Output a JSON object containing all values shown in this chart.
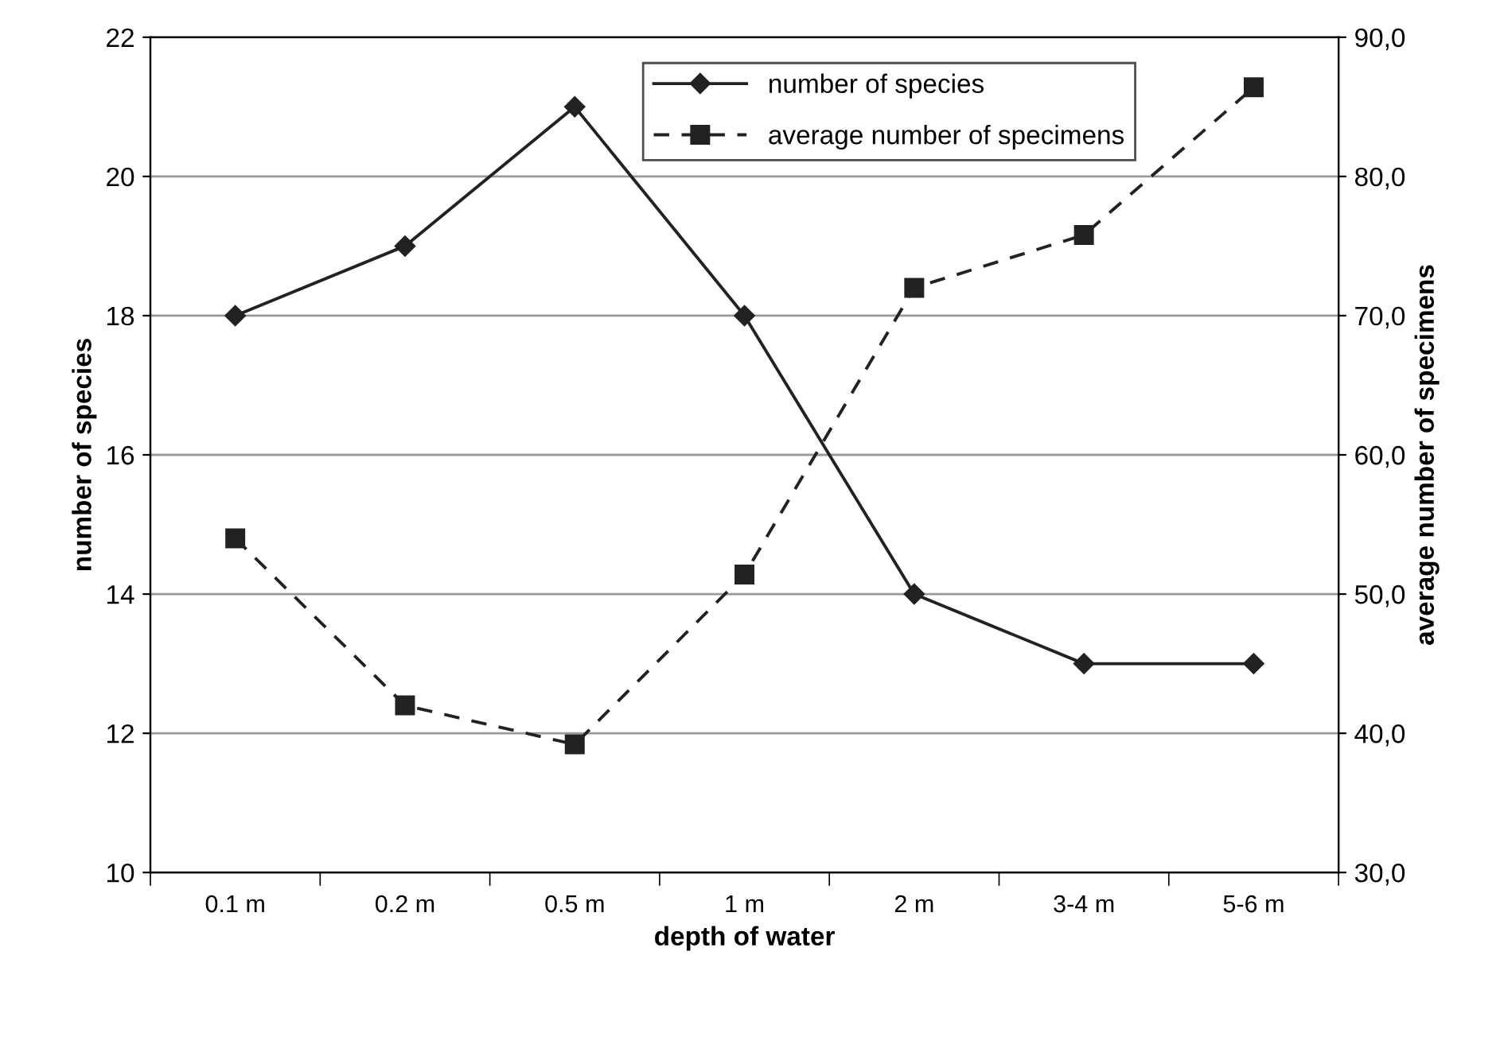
{
  "chart_data": {
    "type": "line",
    "xlabel": "depth of water",
    "ylabel": "number of species",
    "y2label": "average number of specimens",
    "categories": [
      "0.1 m",
      "0.2 m",
      "0.5 m",
      "1 m",
      "2 m",
      "3-4 m",
      "5-6 m"
    ],
    "series": [
      {
        "name": "number of species",
        "color": "#222222",
        "values": [
          18,
          19,
          21,
          18,
          14,
          13,
          13
        ],
        "marker": "diamond",
        "line_style": "solid"
      },
      {
        "name": "average number of specimens",
        "color": "#222222",
        "values": [
          54.0,
          42.0,
          39.2,
          51.4,
          72.0,
          75.8,
          86.4
        ],
        "marker": "square",
        "line_style": "dashed",
        "axis": "y2"
      }
    ],
    "ylim": [
      10,
      22
    ],
    "yticks": [
      10,
      12,
      14,
      16,
      18,
      20,
      22
    ],
    "y2lim": [
      30,
      90
    ],
    "y2ticks": [
      {
        "value": 30,
        "label": "30,0"
      },
      {
        "value": 40,
        "label": "40,0"
      },
      {
        "value": 50,
        "label": "50,0"
      },
      {
        "value": 60,
        "label": "60,0"
      },
      {
        "value": 70,
        "label": "70,0"
      },
      {
        "value": 80,
        "label": "80,0"
      },
      {
        "value": 90,
        "label": "90,0"
      }
    ],
    "grid": "y",
    "legend": "top right"
  }
}
